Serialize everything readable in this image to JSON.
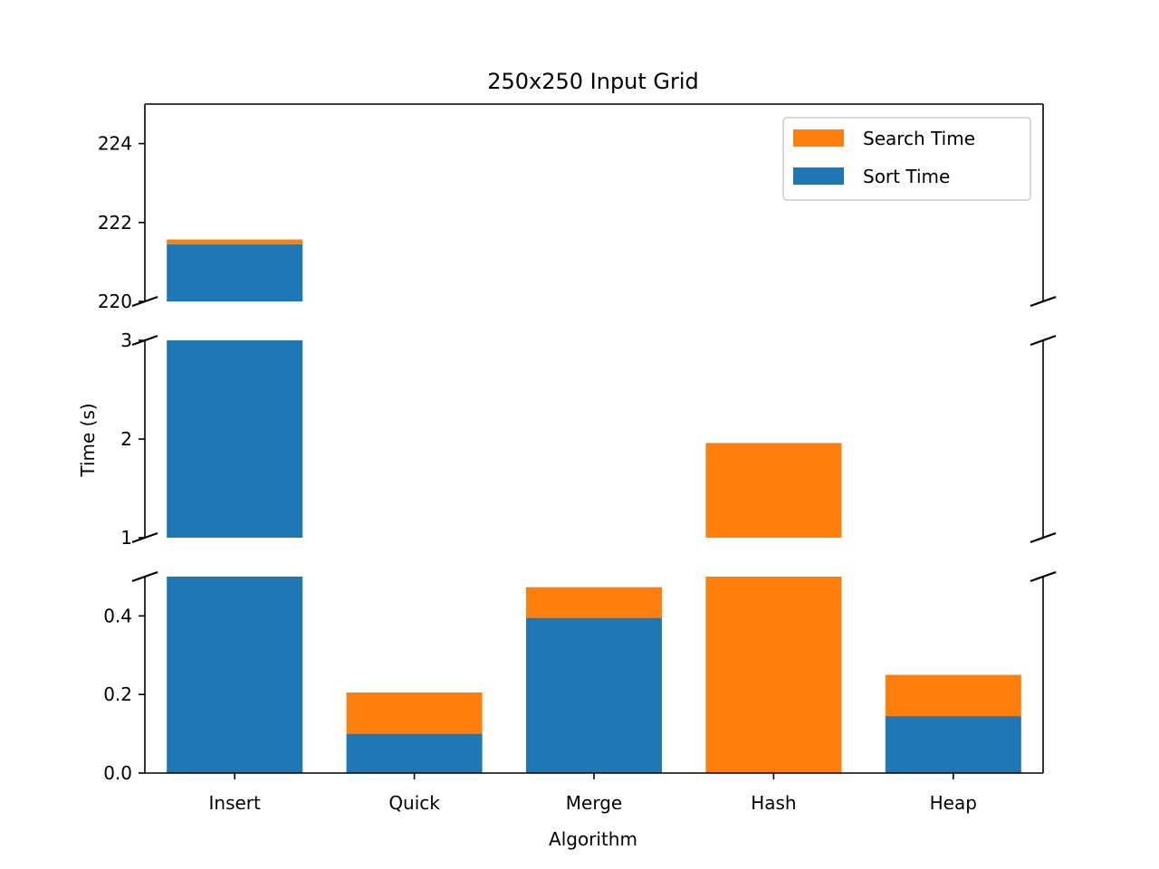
{
  "chart_data": {
    "type": "bar",
    "stacked": true,
    "broken_y_axis": true,
    "title": "250x250 Input Grid",
    "xlabel": "Algorithm",
    "ylabel": "Time (s)",
    "categories": [
      "Insert",
      "Quick",
      "Merge",
      "Hash",
      "Heap"
    ],
    "series": [
      {
        "name": "Sort Time",
        "color": "#1f77b4",
        "values": [
          221.45,
          0.1,
          0.395,
          0.0,
          0.145
        ]
      },
      {
        "name": "Search Time",
        "color": "#ff7f0e",
        "values": [
          0.12,
          0.105,
          0.078,
          1.96,
          0.105
        ]
      }
    ],
    "panels": [
      {
        "ylim": [
          220,
          225
        ],
        "ticks": [
          220,
          222,
          224
        ],
        "tick_labels": [
          "220",
          "222",
          "224"
        ]
      },
      {
        "ylim": [
          1,
          3
        ],
        "ticks": [
          1,
          2,
          3
        ],
        "tick_labels": [
          "1",
          "2",
          "3"
        ]
      },
      {
        "ylim": [
          0,
          0.5
        ],
        "ticks": [
          0,
          0.2,
          0.4
        ],
        "tick_labels": [
          "0.0",
          "0.2",
          "0.4"
        ]
      }
    ],
    "legend": {
      "placement": "top-right",
      "entries": [
        "Search Time",
        "Sort Time"
      ]
    },
    "grid": false
  }
}
